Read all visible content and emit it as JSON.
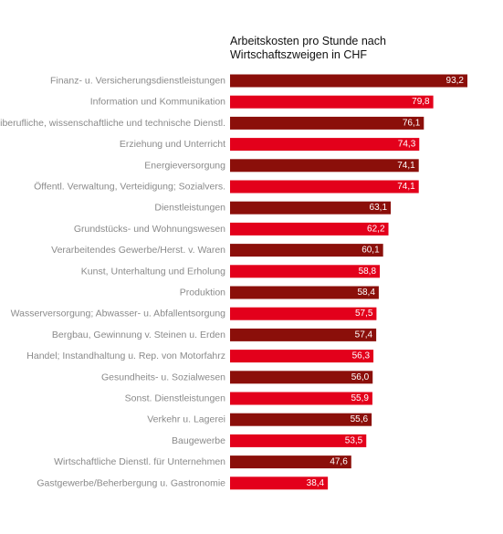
{
  "chart_data": {
    "type": "bar",
    "orientation": "horizontal",
    "title": [
      "Arbeitskosten pro Stunde nach",
      "Wirtschaftszweigen in CHF"
    ],
    "xlabel": "",
    "ylabel": "",
    "xlim": [
      0,
      93.2
    ],
    "grid": false,
    "categories": [
      "Finanz- u. Versicherungsdienstleistungen",
      "Information und Kommunikation",
      "Freiberufliche, wissenschaftliche und technische Dienstl.",
      "Erziehung und Unterricht",
      "Energieversorgung",
      "Öffentl. Verwaltung, Verteidigung; Sozialvers.",
      "Dienstleistungen",
      "Grundstücks- und Wohnungswesen",
      "Verarbeitendes Gewerbe/Herst. v. Waren",
      "Kunst, Unterhaltung und Erholung",
      "Produktion",
      "Wasserversorgung; Abwasser- u. Abfallentsorgung",
      "Bergbau, Gewinnung v. Steinen u. Erden",
      "Handel; Instandhaltung u. Rep. von Motorfahrz",
      "Gesundheits- u. Sozialwesen",
      "Sonst. Dienstleistungen",
      "Verkehr u. Lagerei",
      "Baugewerbe",
      "Wirtschaftliche Dienstl. für Unternehmen",
      "Gastgewerbe/Beherbergung u. Gastronomie"
    ],
    "values": [
      93.2,
      79.8,
      76.1,
      74.3,
      74.1,
      74.1,
      63.1,
      62.2,
      60.1,
      58.8,
      58.4,
      57.5,
      57.4,
      56.3,
      56.0,
      55.9,
      55.6,
      53.5,
      47.6,
      38.4
    ],
    "value_labels": [
      "93,2",
      "79,8",
      "76,1",
      "74,3",
      "74,1",
      "74,1",
      "63,1",
      "62,2",
      "60,1",
      "58,8",
      "58,4",
      "57,5",
      "57,4",
      "56,3",
      "56,0",
      "55,9",
      "55,6",
      "53,5",
      "47,6",
      "38,4"
    ],
    "bar_colors": [
      "dark",
      "red",
      "dark",
      "red",
      "dark",
      "red",
      "dark",
      "red",
      "dark",
      "red",
      "dark",
      "red",
      "dark",
      "red",
      "dark",
      "red",
      "dark",
      "red",
      "dark",
      "red"
    ],
    "colors": {
      "dark": "#8b0f0a",
      "red": "#e3001b",
      "category_text": "#8a8a8a",
      "value_text": "#ffffff",
      "title_text": "#111111"
    }
  }
}
